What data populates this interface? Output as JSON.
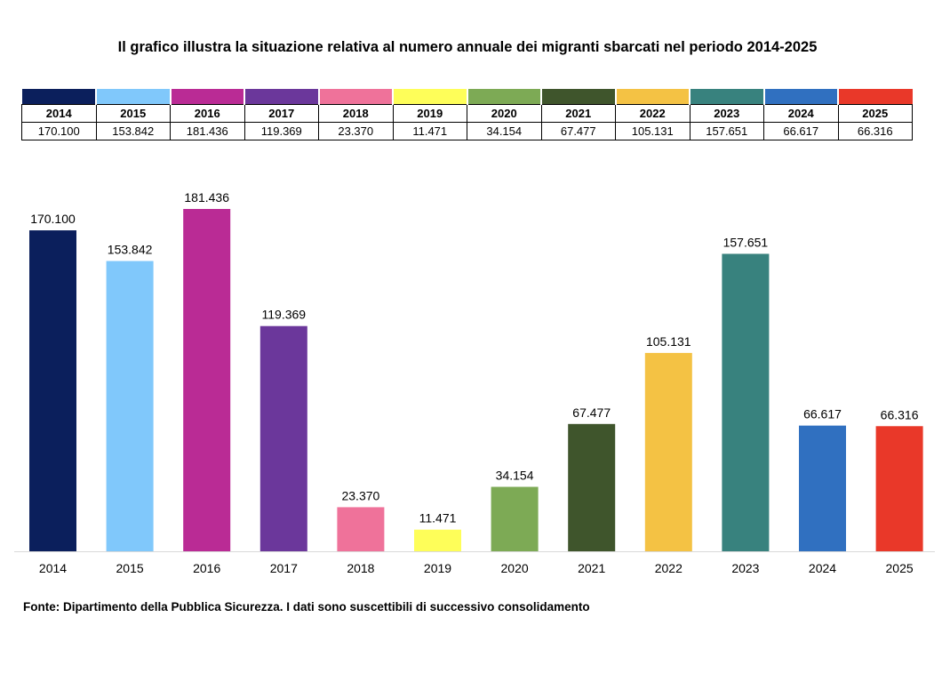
{
  "title": "Il grafico illustra la situazione relativa al numero annuale dei migranti sbarcati nel periodo 2014-2025",
  "source": "Fonte: Dipartimento della Pubblica Sicurezza. I dati sono suscettibili di successivo consolidamento",
  "table": {
    "years": [
      "2014",
      "2015",
      "2016",
      "2017",
      "2018",
      "2019",
      "2020",
      "2021",
      "2022",
      "2023",
      "2024",
      "2025"
    ],
    "values": [
      "170.100",
      "153.842",
      "181.436",
      "119.369",
      "23.370",
      "11.471",
      "34.154",
      "67.477",
      "105.131",
      "157.651",
      "66.617",
      "66.316"
    ]
  },
  "chart_data": {
    "type": "bar",
    "categories": [
      "2014",
      "2015",
      "2016",
      "2017",
      "2018",
      "2019",
      "2020",
      "2021",
      "2022",
      "2023",
      "2024",
      "2025"
    ],
    "values": [
      170100,
      153842,
      181436,
      119369,
      23370,
      11471,
      34154,
      67477,
      105131,
      157651,
      66617,
      66316
    ],
    "labels": [
      "170.100",
      "153.842",
      "181.436",
      "119.369",
      "23.370",
      "11.471",
      "34.154",
      "67.477",
      "105.131",
      "157.651",
      "66.617",
      "66.316"
    ],
    "colors": [
      "#0b1f5c",
      "#80c8fb",
      "#ba2b95",
      "#6b379b",
      "#ef729a",
      "#fefe59",
      "#7daa55",
      "#3f552c",
      "#f4c244",
      "#38827e",
      "#3070c0",
      "#e93829"
    ],
    "ylim": [
      0,
      181436
    ],
    "grid": false,
    "legend": "table-top"
  }
}
